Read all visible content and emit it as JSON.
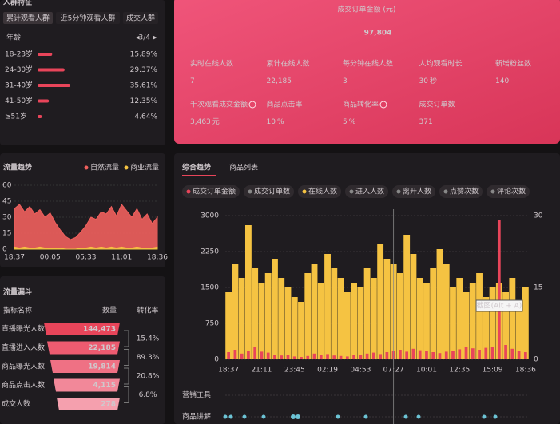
{
  "audience": {
    "title": "人群特征",
    "tabs": [
      "累计观看人群",
      "近5分钟观看人群",
      "成交人群"
    ],
    "group": "年龄",
    "pager": "3/4",
    "rows": [
      {
        "label": "18-23岁",
        "value": 15.89,
        "value_label": "15.89%"
      },
      {
        "label": "24-30岁",
        "value": 29.37,
        "value_label": "29.37%"
      },
      {
        "label": "31-40岁",
        "value": 35.61,
        "value_label": "35.61%"
      },
      {
        "label": "41-50岁",
        "value": 12.35,
        "value_label": "12.35%"
      },
      {
        "label": "≥51岁",
        "value": 4.64,
        "value_label": "4.64%"
      }
    ]
  },
  "summary": {
    "title": "成交订单金额 (元)",
    "value": "97,804",
    "metrics": [
      {
        "label": "实时在线人数",
        "value": "7"
      },
      {
        "label": "累计在线人数",
        "value": "22,185"
      },
      {
        "label": "每分钟在线人数",
        "value": "3"
      },
      {
        "label": "人均观看时长",
        "value": "30",
        "unit": "秒"
      },
      {
        "label": "新增粉丝数",
        "value": "140"
      },
      {
        "label": "千次观看成交金额",
        "value": "3,463",
        "unit": "元",
        "info": true
      },
      {
        "label": "商品点击率",
        "value": "10",
        "unit": "%"
      },
      {
        "label": "商品转化率",
        "value": "5",
        "unit": "%",
        "info": true
      },
      {
        "label": "成交订单数",
        "value": "371"
      }
    ]
  },
  "funnel": {
    "title": "流量漏斗",
    "headers": [
      "指标名称",
      "数量",
      "转化率"
    ],
    "rows": [
      {
        "label": "直播曝光人数",
        "value": "144,473"
      },
      {
        "label": "直播进入人数",
        "value": "22,185"
      },
      {
        "label": "商品曝光人数",
        "value": "19,814"
      },
      {
        "label": "商品点击人数",
        "value": "4,115"
      },
      {
        "label": "成交人数",
        "value": "278"
      }
    ],
    "rates": [
      "15.4%",
      "89.3%",
      "20.8%",
      "6.8%"
    ]
  },
  "tabs": [
    "综合趋势",
    "商品列表"
  ],
  "tooltip": "截图(Alt + A)",
  "tracks": [
    "营销工具",
    "商品讲解"
  ],
  "chart_data": [
    {
      "type": "area",
      "title": "流量趋势",
      "legend": "top-right",
      "categories": [
        "18:37",
        null,
        null,
        null,
        null,
        null,
        null,
        "00:05",
        null,
        null,
        null,
        null,
        null,
        null,
        "05:33",
        null,
        null,
        null,
        null,
        null,
        null,
        "11:01",
        null,
        null,
        null,
        null,
        null,
        null,
        "18:36"
      ],
      "ylim": [
        0,
        60
      ],
      "yticks": [
        0,
        15,
        30,
        45,
        60
      ],
      "series": [
        {
          "name": "自然流量",
          "color": "#f0605d",
          "values": [
            38,
            42,
            35,
            40,
            33,
            37,
            30,
            34,
            25,
            18,
            12,
            9,
            11,
            16,
            22,
            30,
            28,
            35,
            33,
            40,
            31,
            42,
            36,
            30,
            38,
            28,
            33,
            24,
            30
          ]
        },
        {
          "name": "商业流量",
          "color": "#f5c342",
          "values": [
            2,
            1,
            2,
            1,
            1,
            2,
            1,
            1,
            1,
            1,
            0,
            0,
            0,
            1,
            1,
            2,
            1,
            2,
            1,
            2,
            1,
            2,
            1,
            1,
            2,
            1,
            1,
            1,
            2
          ]
        }
      ]
    },
    {
      "type": "bar",
      "categories": [
        "18:37",
        null,
        null,
        null,
        null,
        "21:11",
        null,
        null,
        null,
        null,
        "23:45",
        null,
        null,
        null,
        null,
        "02:19",
        null,
        null,
        null,
        null,
        "04:53",
        null,
        null,
        null,
        null,
        "07:27",
        null,
        null,
        null,
        null,
        "10:01",
        null,
        null,
        null,
        null,
        "12:35",
        null,
        null,
        null,
        null,
        "15:09",
        null,
        null,
        null,
        null,
        "18:36"
      ],
      "ylim": [
        0,
        3000
      ],
      "yticks": [
        0,
        750,
        1500,
        2250,
        3000
      ],
      "y2lim": [
        0,
        30
      ],
      "y2ticks": [
        0,
        15,
        30
      ],
      "grid": true,
      "series": [
        {
          "name": "成交订单金额",
          "color": "#e8455a",
          "values": [
            150,
            200,
            120,
            180,
            250,
            160,
            140,
            100,
            80,
            90,
            60,
            50,
            70,
            120,
            90,
            110,
            80,
            70,
            60,
            90,
            100,
            120,
            140,
            110,
            150,
            180,
            200,
            160,
            220,
            190,
            170,
            150,
            130,
            160,
            180,
            210,
            250,
            230,
            200,
            240,
            260,
            2900,
            300,
            220,
            180,
            150
          ]
        },
        {
          "name": "在线人数",
          "color": "#f5c342",
          "axis": "y2",
          "values": [
            14,
            20,
            17,
            28,
            19,
            16,
            18,
            21,
            17,
            15,
            13,
            12,
            18,
            20,
            16,
            22,
            19,
            17,
            14,
            16,
            15,
            19,
            17,
            24,
            21,
            20,
            18,
            26,
            22,
            17,
            16,
            19,
            23,
            20,
            15,
            17,
            14,
            16,
            18,
            13,
            15,
            16,
            14,
            17,
            12,
            15
          ]
        }
      ],
      "inactive_series": [
        "成交订单数",
        "进入人数",
        "离开人数",
        "点赞次数",
        "评论次数"
      ]
    }
  ]
}
